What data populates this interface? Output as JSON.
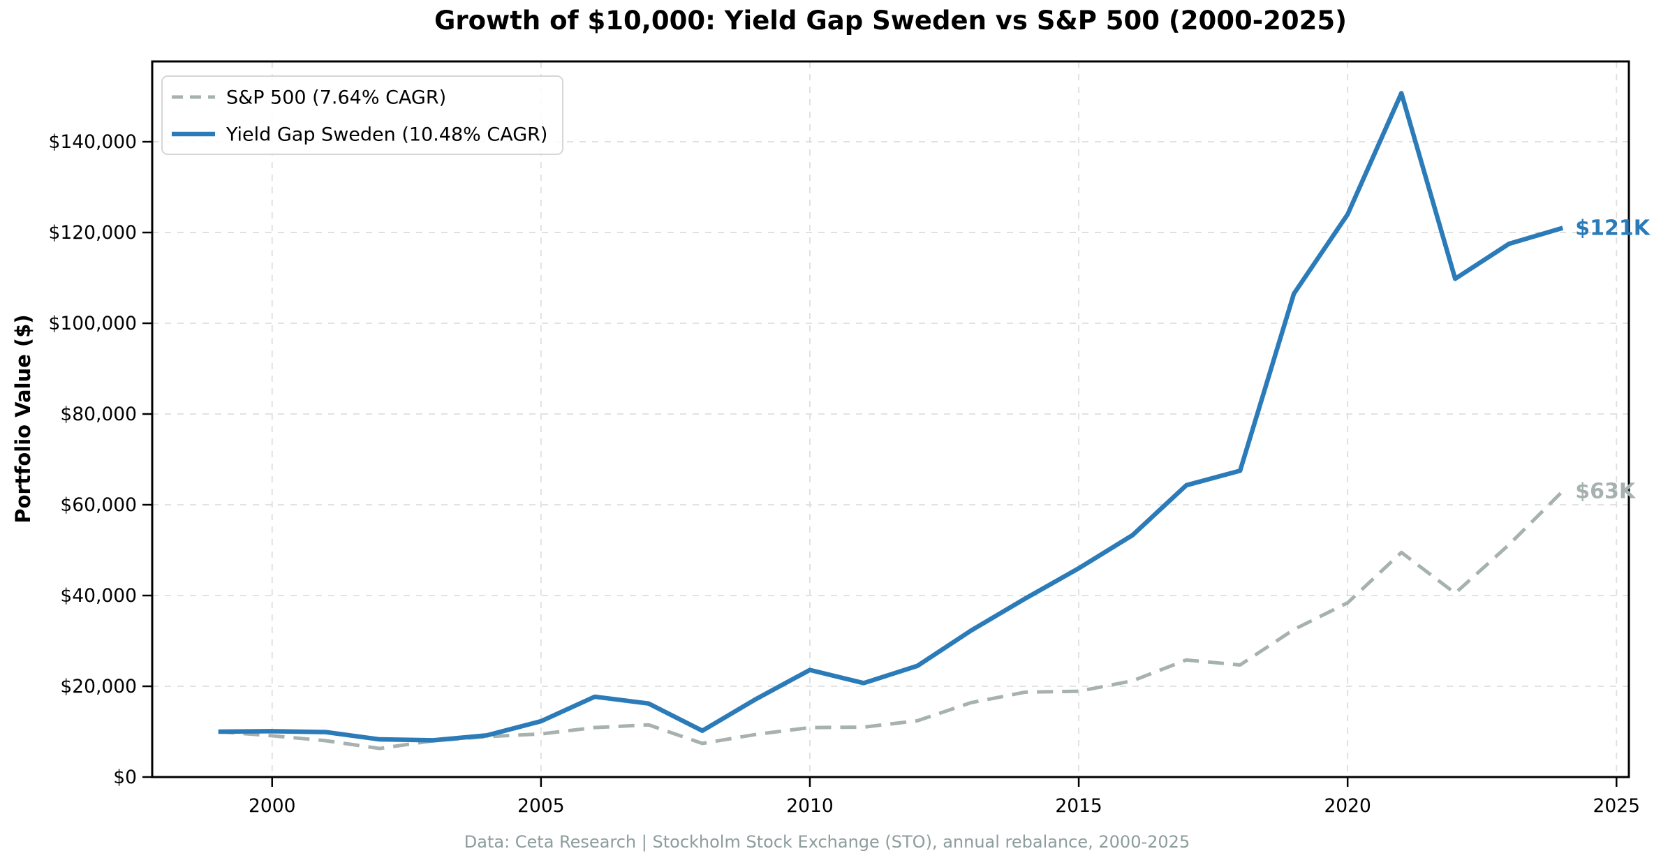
{
  "title": "Growth of $10,000: Yield Gap Sweden vs S&P 500 (2000-2025)",
  "ylabel": "Portfolio Value ($)",
  "footer": "Data: Ceta Research | Stockholm Stock Exchange (STO), annual rebalance, 2000-2025",
  "chart_data": {
    "type": "line",
    "x": [
      1999,
      2000,
      2001,
      2002,
      2003,
      2004,
      2005,
      2006,
      2007,
      2008,
      2009,
      2010,
      2011,
      2012,
      2013,
      2014,
      2015,
      2016,
      2017,
      2018,
      2019,
      2020,
      2021,
      2022,
      2023,
      2024
    ],
    "series": [
      {
        "name": "S&P 500 (7.64% CAGR)",
        "style": "dashed",
        "color": "#a6b1b0",
        "end_label": "$63K",
        "values": [
          10000,
          9100,
          8000,
          6300,
          8000,
          8900,
          9500,
          10900,
          11500,
          7400,
          9400,
          10900,
          11000,
          12400,
          16400,
          18700,
          18900,
          21200,
          25800,
          24700,
          32500,
          38400,
          49500,
          40500,
          51200,
          63000
        ]
      },
      {
        "name": "Yield Gap Sweden (10.48% CAGR)",
        "style": "solid",
        "color": "#2b7bb9",
        "end_label": "$121K",
        "values": [
          10000,
          10100,
          9900,
          8300,
          8100,
          9200,
          12300,
          17700,
          16200,
          10200,
          17200,
          23600,
          20700,
          24500,
          32300,
          39300,
          46000,
          53300,
          64300,
          67500,
          106500,
          124000,
          150700,
          109800,
          117500,
          121000
        ]
      }
    ],
    "xticks": {
      "values": [
        2000,
        2005,
        2010,
        2015,
        2020,
        2025
      ],
      "labels": [
        "2000",
        "2005",
        "2010",
        "2015",
        "2020",
        "2025"
      ]
    },
    "yticks": {
      "values": [
        0,
        20000,
        40000,
        60000,
        80000,
        100000,
        120000,
        140000
      ],
      "labels": [
        "$0",
        "$20,000",
        "$40,000",
        "$60,000",
        "$80,000",
        "$100,000",
        "$120,000",
        "$140,000"
      ]
    },
    "xlim": [
      1997.77,
      2025.23
    ],
    "ylim": [
      0,
      157700
    ],
    "grid": true,
    "legend_position": "upper-left",
    "colors": {
      "grid": "#dddfdf",
      "spine": "#000000",
      "tick_label": "#000000",
      "footer_text": "#8d9d9c",
      "legend_border": "#d6d6d6",
      "background": "#ffffff"
    }
  }
}
